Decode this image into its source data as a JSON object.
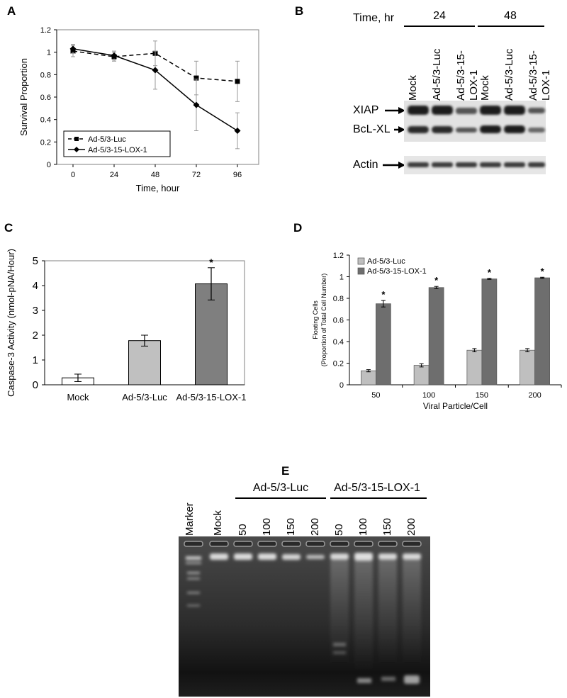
{
  "panels": {
    "A": "A",
    "B": "B",
    "C": "C",
    "D": "D",
    "E": "E"
  },
  "chart_data": [
    {
      "panel": "A",
      "type": "line",
      "xlabel": "Time, hour",
      "ylabel": "Survival Proportion",
      "x": [
        0,
        24,
        48,
        72,
        96
      ],
      "ylim": [
        0,
        1.2
      ],
      "yticks": [
        "0",
        "0.2",
        "0.4",
        "0.6",
        "0.8",
        "1",
        "1.2"
      ],
      "legend_position": "bottom-left",
      "series": [
        {
          "name": "Ad-5/3-Luc",
          "style": "dashed",
          "marker": "square",
          "values": [
            1.01,
            0.96,
            0.99,
            0.77,
            0.74
          ],
          "errors": [
            0.05,
            0.04,
            0.11,
            0.15,
            0.18
          ]
        },
        {
          "name": "Ad-5/3-15-LOX-1",
          "style": "solid",
          "marker": "diamond",
          "values": [
            1.03,
            0.97,
            0.84,
            0.53,
            0.3
          ],
          "errors": [
            0.04,
            0.04,
            0.17,
            0.23,
            0.16
          ]
        }
      ]
    },
    {
      "panel": "C",
      "type": "bar",
      "xlabel": "",
      "ylabel": "Caspase-3 Activity (nmol-pNA/Hour)",
      "categories": [
        "Mock",
        "Ad-5/3-Luc",
        "Ad-5/3-15-LOX-1"
      ],
      "values": [
        0.28,
        1.78,
        4.07
      ],
      "errors": [
        0.15,
        0.22,
        0.65
      ],
      "colors": [
        "#ffffff",
        "#c0c0c0",
        "#7f7f7f"
      ],
      "significant": [
        false,
        false,
        true
      ],
      "ylim": [
        0,
        5
      ],
      "yticks": [
        "0",
        "1",
        "2",
        "3",
        "4",
        "5"
      ]
    },
    {
      "panel": "D",
      "type": "bar",
      "xlabel": "Viral Particle/Cell",
      "ylabel_line1": "Floating Cells",
      "ylabel_line2": "(Proportion of Total Cell Number)",
      "categories": [
        "50",
        "100",
        "150",
        "200"
      ],
      "ylim": [
        0,
        1.2
      ],
      "yticks": [
        "0",
        "0.2",
        "0.4",
        "0.6",
        "0.8",
        "1",
        "1.2"
      ],
      "legend_position": "top-left",
      "series": [
        {
          "name": "Ad-5/3-Luc",
          "color": "#bfbfbf",
          "values": [
            0.13,
            0.18,
            0.32,
            0.32
          ],
          "errors": [
            0.01,
            0.015,
            0.015,
            0.015
          ]
        },
        {
          "name": "Ad-5/3-15-LOX-1",
          "color": "#6e6e6e",
          "values": [
            0.75,
            0.9,
            0.98,
            0.99
          ],
          "errors": [
            0.03,
            0.01,
            0.005,
            0.005
          ],
          "significant": [
            true,
            true,
            true,
            true
          ]
        }
      ]
    }
  ],
  "blot": {
    "time_label": "Time, hr",
    "groups": [
      "24",
      "48"
    ],
    "lanes": [
      "Mock",
      "Ad-5/3-Luc",
      "Ad-5/3-15-LOX-1",
      "Mock",
      "Ad-5/3-Luc",
      "Ad-5/3-15-LOX-1"
    ],
    "bands": [
      "XIAP",
      "BcL-XL",
      "Actin"
    ]
  },
  "gel": {
    "marker_label": "Marker",
    "mock_label": "Mock",
    "groups": [
      "Ad-5/3-Luc",
      "Ad-5/3-15-LOX-1"
    ],
    "doses": [
      "50",
      "100",
      "150",
      "200",
      "50",
      "100",
      "150",
      "200"
    ]
  },
  "asterisk": "*"
}
